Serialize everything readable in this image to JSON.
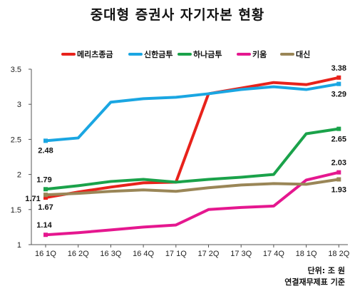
{
  "chart_data": {
    "type": "line",
    "title": "중대형 증권사 자기자본 현황",
    "x": [
      "16 1Q",
      "16 2Q",
      "16 3Q",
      "16 4Q",
      "17 1Q",
      "17 2Q",
      "17 3Q",
      "17 4Q",
      "18 1Q",
      "18 2Q"
    ],
    "ylim": [
      1,
      3.5
    ],
    "yticks": [
      "1",
      "1.5",
      "2",
      "2.5",
      "3",
      "3.5"
    ],
    "grid": false,
    "legend_position": "top",
    "series": [
      {
        "name": "메리츠종금",
        "color": "#e8221b",
        "values": [
          1.67,
          1.75,
          1.82,
          1.88,
          1.89,
          3.15,
          3.23,
          3.31,
          3.28,
          3.38
        ]
      },
      {
        "name": "신한금투",
        "color": "#1aa6e2",
        "values": [
          2.48,
          2.52,
          3.03,
          3.08,
          3.1,
          3.15,
          3.21,
          3.25,
          3.21,
          3.29
        ]
      },
      {
        "name": "하나금투",
        "color": "#1aa24a",
        "values": [
          1.79,
          1.84,
          1.9,
          1.93,
          1.89,
          1.93,
          1.96,
          2.0,
          2.58,
          2.65
        ]
      },
      {
        "name": "키움",
        "color": "#e5178f",
        "values": [
          1.14,
          1.17,
          1.21,
          1.25,
          1.28,
          1.5,
          1.53,
          1.55,
          1.92,
          2.03
        ]
      },
      {
        "name": "대신",
        "color": "#9a8657",
        "values": [
          1.71,
          1.73,
          1.76,
          1.78,
          1.76,
          1.81,
          1.85,
          1.87,
          1.86,
          1.93
        ]
      }
    ],
    "data_labels": [
      {
        "series": 0,
        "index": 9,
        "text": "3.38"
      },
      {
        "series": 1,
        "index": 9,
        "text": "3.29"
      },
      {
        "series": 1,
        "index": 0,
        "text": "2.48"
      },
      {
        "series": 2,
        "index": 9,
        "text": "2.65"
      },
      {
        "series": 2,
        "index": 0,
        "text": "1.79"
      },
      {
        "series": 3,
        "index": 9,
        "text": "2.03"
      },
      {
        "series": 3,
        "index": 0,
        "text": "1.14"
      },
      {
        "series": 4,
        "index": 9,
        "text": "1.93"
      },
      {
        "series": 4,
        "index": 0,
        "text": "1.71"
      },
      {
        "series": 0,
        "index": 0,
        "text": "1.67"
      }
    ]
  },
  "note": {
    "line1": "단위: 조 원",
    "line2": "연결재무제표 기준"
  }
}
